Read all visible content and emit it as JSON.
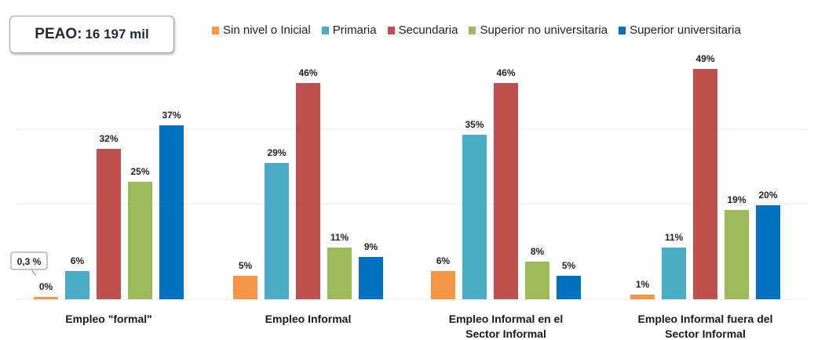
{
  "header": {
    "peao_label": "PEAO:",
    "peao_value": "16 197 mil"
  },
  "chart_data": {
    "type": "bar",
    "title": "",
    "xlabel": "",
    "ylabel": "",
    "ylim": [
      0,
      52
    ],
    "grid": false,
    "legend_position": "top",
    "categories": [
      "Empleo \"formal\"",
      "Empleo Informal",
      "Empleo Informal en el Sector Informal",
      "Empleo Informal fuera del Sector Informal"
    ],
    "series": [
      {
        "name": "Sin nivel o Inicial",
        "color": "#f79646",
        "values": [
          0.3,
          5,
          6,
          1
        ],
        "labels": [
          "0%",
          "5%",
          "6%",
          "1%"
        ]
      },
      {
        "name": "Primaria",
        "color": "#4bacc6",
        "values": [
          6,
          29,
          35,
          11
        ],
        "labels": [
          "6%",
          "29%",
          "35%",
          "11%"
        ]
      },
      {
        "name": "Secundaria",
        "color": "#c0504d",
        "values": [
          32,
          46,
          46,
          49
        ],
        "labels": [
          "32%",
          "46%",
          "46%",
          "49%"
        ]
      },
      {
        "name": "Superior no universitaria",
        "color": "#9bbb59",
        "values": [
          25,
          11,
          8,
          19
        ],
        "labels": [
          "25%",
          "11%",
          "8%",
          "19%"
        ]
      },
      {
        "name": "Superior universitaria",
        "color": "#0070c0",
        "values": [
          37,
          9,
          5,
          20
        ],
        "labels": [
          "37%",
          "9%",
          "5%",
          "20%"
        ]
      }
    ],
    "annotations": [
      {
        "text": "0,3 %"
      }
    ]
  }
}
